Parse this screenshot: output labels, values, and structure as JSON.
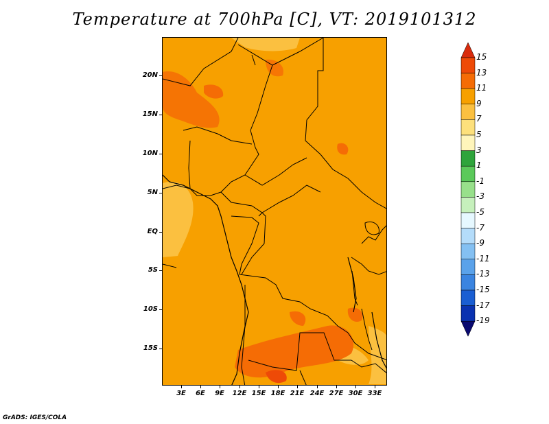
{
  "title": "Temperature at 700hPa [C], VT: 2019101312",
  "credit": "GrADS: IGES/COLA",
  "map": {
    "lat_labels": [
      "20N",
      "15N",
      "10N",
      "5N",
      "EQ",
      "5S",
      "10S",
      "15S"
    ],
    "lon_labels": [
      "3E",
      "6E",
      "9E",
      "12E",
      "15E",
      "18E",
      "21E",
      "24E",
      "27E",
      "30E",
      "33E"
    ],
    "base_fill_color": "#f7a000"
  },
  "colorbar": {
    "labels": [
      "15",
      "13",
      "11",
      "9",
      "7",
      "5",
      "3",
      "1",
      "-1",
      "-3",
      "-5",
      "-7",
      "-9",
      "-11",
      "-13",
      "-15",
      "-17",
      "-19"
    ],
    "colors": [
      "#d92b0c",
      "#ee4a07",
      "#f56c05",
      "#f7a000",
      "#fbc040",
      "#fde07c",
      "#fff5bb",
      "#2ea43b",
      "#5bc95a",
      "#98e08b",
      "#c6f0bc",
      "#e6f8ff",
      "#b4dcfa",
      "#84c0f2",
      "#5aa2ea",
      "#3a84e0",
      "#1a5ed2",
      "#0a32b0",
      "#0a0a70"
    ]
  }
}
